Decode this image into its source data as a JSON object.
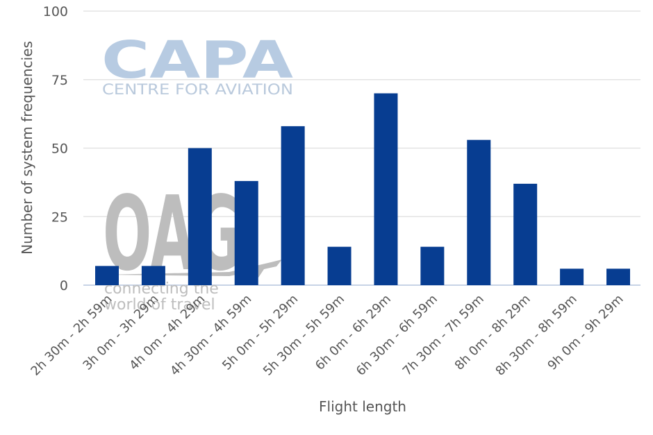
{
  "chart_data": {
    "type": "bar",
    "title": "",
    "xlabel": "Flight length",
    "ylabel": "Number of system frequencies",
    "ylim": [
      0,
      100
    ],
    "yticks": [
      0,
      25,
      50,
      75,
      100
    ],
    "grid": true,
    "legend": "none",
    "categories": [
      "2h 30m - 2h 59m",
      "3h 0m - 3h 29m",
      "4h 0m - 4h 29m",
      "4h 30m - 4h 59m",
      "5h 0m - 5h 29m",
      "5h 30m - 5h 59m",
      "6h 0m - 6h 29m",
      "6h 30m - 6h 59m",
      "7h 30m - 7h 59m",
      "8h 0m - 8h 29m",
      "8h 30m - 8h 59m",
      "9h 0m - 9h 29m"
    ],
    "values": [
      7,
      7,
      50,
      38,
      58,
      14,
      70,
      14,
      53,
      37,
      6,
      6
    ],
    "bar_color": "#073d91",
    "grid_color": "#e3e3e3",
    "axis_color": "#c7d3e6"
  },
  "watermarks": {
    "capa_logo": "CAPA",
    "capa_tagline": "CENTRE FOR AVIATION",
    "oag_logo": "OAG",
    "oag_tagline_1": "connecting the",
    "oag_tagline_2": "world of travel"
  }
}
